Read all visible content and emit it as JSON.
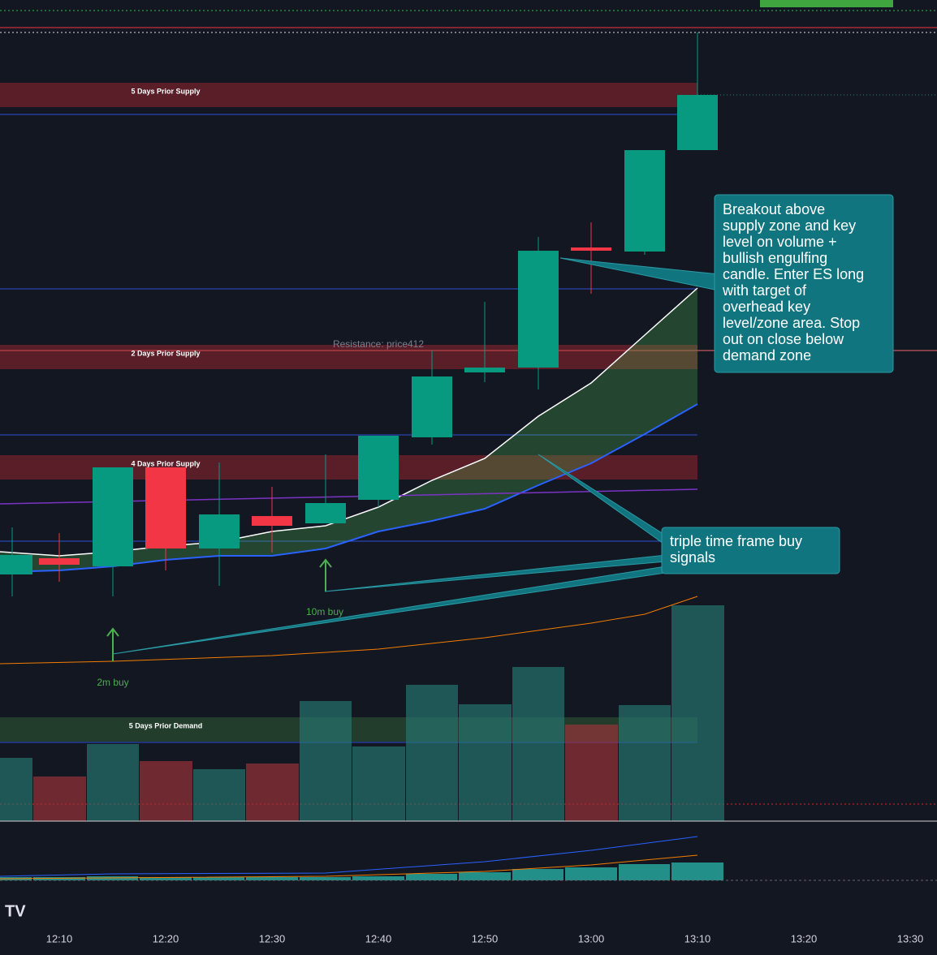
{
  "zones": [
    {
      "label": "5 Days Prior Supply"
    },
    {
      "label": "2 Days Prior Supply"
    },
    {
      "label": "4 Days Prior Supply"
    },
    {
      "label": "5 Days Prior Demand"
    }
  ],
  "resistance_label": "Resistance: price412",
  "callout": {
    "lines": [
      "Breakout above",
      "supply zone and key",
      "level on volume +",
      "bullish engulfing",
      "candle. Enter ES long",
      "with target of",
      "overhead key",
      "level/zone area. Stop",
      "out on close below",
      "demand zone"
    ]
  },
  "signals_callout": {
    "lines": [
      "triple time frame buy",
      "signals"
    ]
  },
  "signals": [
    "10m buy",
    "2m buy"
  ],
  "time_axis": [
    "12:10",
    "12:20",
    "12:30",
    "12:40",
    "12:50",
    "13:00",
    "13:10",
    "13:20",
    "13:30"
  ]
}
